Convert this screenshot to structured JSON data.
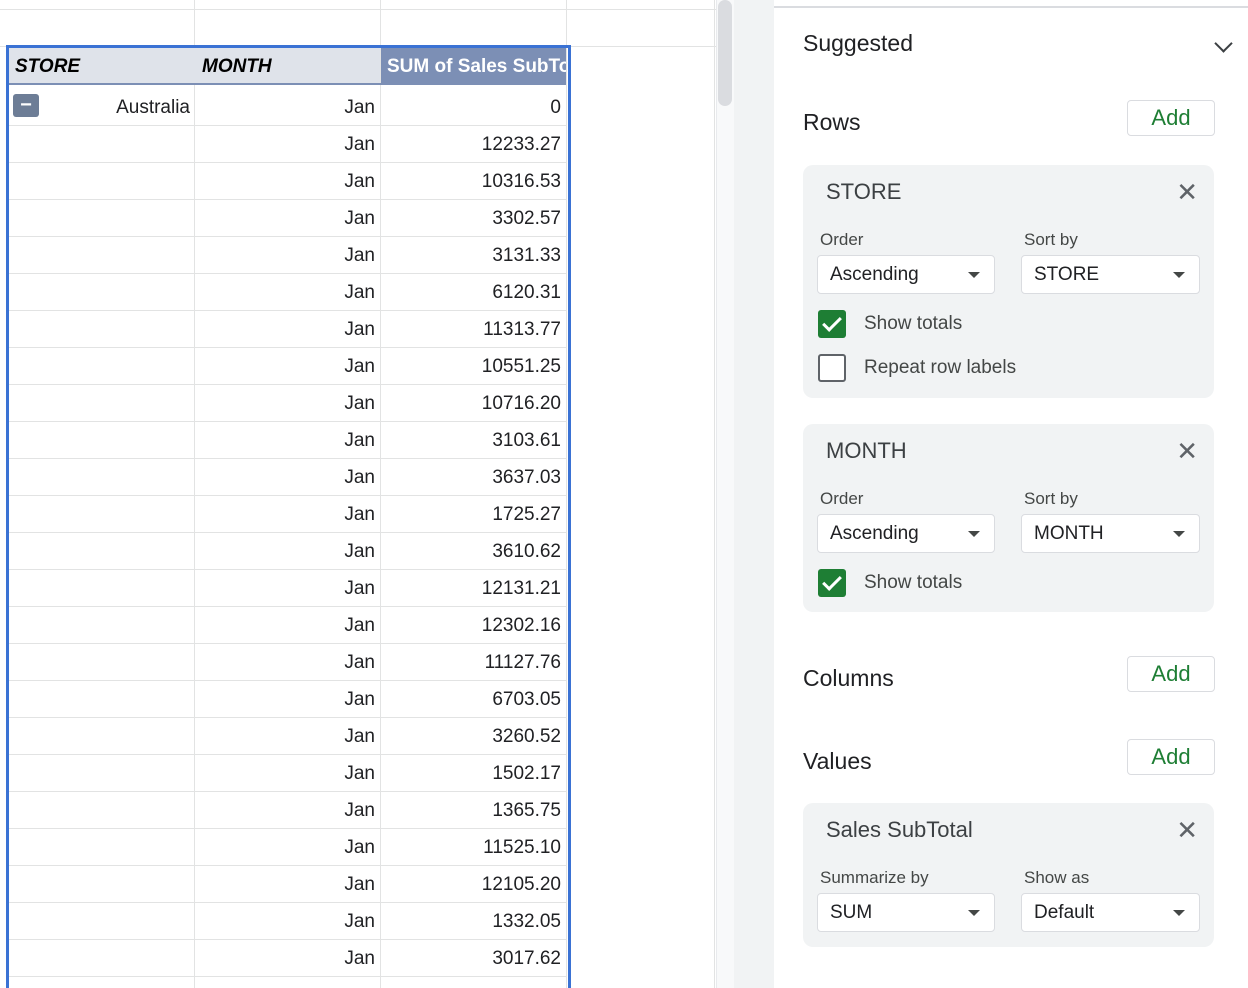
{
  "pivot_table": {
    "headers": {
      "store": "STORE",
      "month": "MONTH",
      "value": "SUM of Sales SubTot"
    },
    "collapse_symbol": "−",
    "first_row_store": "Australia",
    "rows": [
      {
        "month": "Jan",
        "value": "0"
      },
      {
        "month": "Jan",
        "value": "12233.27"
      },
      {
        "month": "Jan",
        "value": "10316.53"
      },
      {
        "month": "Jan",
        "value": "3302.57"
      },
      {
        "month": "Jan",
        "value": "3131.33"
      },
      {
        "month": "Jan",
        "value": "6120.31"
      },
      {
        "month": "Jan",
        "value": "11313.77"
      },
      {
        "month": "Jan",
        "value": "10551.25"
      },
      {
        "month": "Jan",
        "value": "10716.20"
      },
      {
        "month": "Jan",
        "value": "3103.61"
      },
      {
        "month": "Jan",
        "value": "3637.03"
      },
      {
        "month": "Jan",
        "value": "1725.27"
      },
      {
        "month": "Jan",
        "value": "3610.62"
      },
      {
        "month": "Jan",
        "value": "12131.21"
      },
      {
        "month": "Jan",
        "value": "12302.16"
      },
      {
        "month": "Jan",
        "value": "11127.76"
      },
      {
        "month": "Jan",
        "value": "6703.05"
      },
      {
        "month": "Jan",
        "value": "3260.52"
      },
      {
        "month": "Jan",
        "value": "1502.17"
      },
      {
        "month": "Jan",
        "value": "1365.75"
      },
      {
        "month": "Jan",
        "value": "11525.10"
      },
      {
        "month": "Jan",
        "value": "12105.20"
      },
      {
        "month": "Jan",
        "value": "1332.05"
      },
      {
        "month": "Jan",
        "value": "3017.62"
      }
    ]
  },
  "editor": {
    "suggested_label": "Suggested",
    "rows_label": "Rows",
    "columns_label": "Columns",
    "values_label": "Values",
    "add_label": "Add",
    "close_symbol": "✕",
    "store_card": {
      "title": "STORE",
      "order_label": "Order",
      "order_value": "Ascending",
      "sortby_label": "Sort by",
      "sortby_value": "STORE",
      "show_totals_label": "Show totals",
      "show_totals_checked": true,
      "repeat_labels_label": "Repeat row labels",
      "repeat_labels_checked": false
    },
    "month_card": {
      "title": "MONTH",
      "order_label": "Order",
      "order_value": "Ascending",
      "sortby_label": "Sort by",
      "sortby_value": "MONTH",
      "show_totals_label": "Show totals",
      "show_totals_checked": true
    },
    "values_card": {
      "title": "Sales SubTotal",
      "summarize_label": "Summarize by",
      "summarize_value": "SUM",
      "showas_label": "Show as",
      "showas_value": "Default"
    }
  },
  "colors": {
    "accent_green": "#1e7e34",
    "selection_blue": "#3a72d4",
    "value_header_bg": "#7c8fb5"
  }
}
